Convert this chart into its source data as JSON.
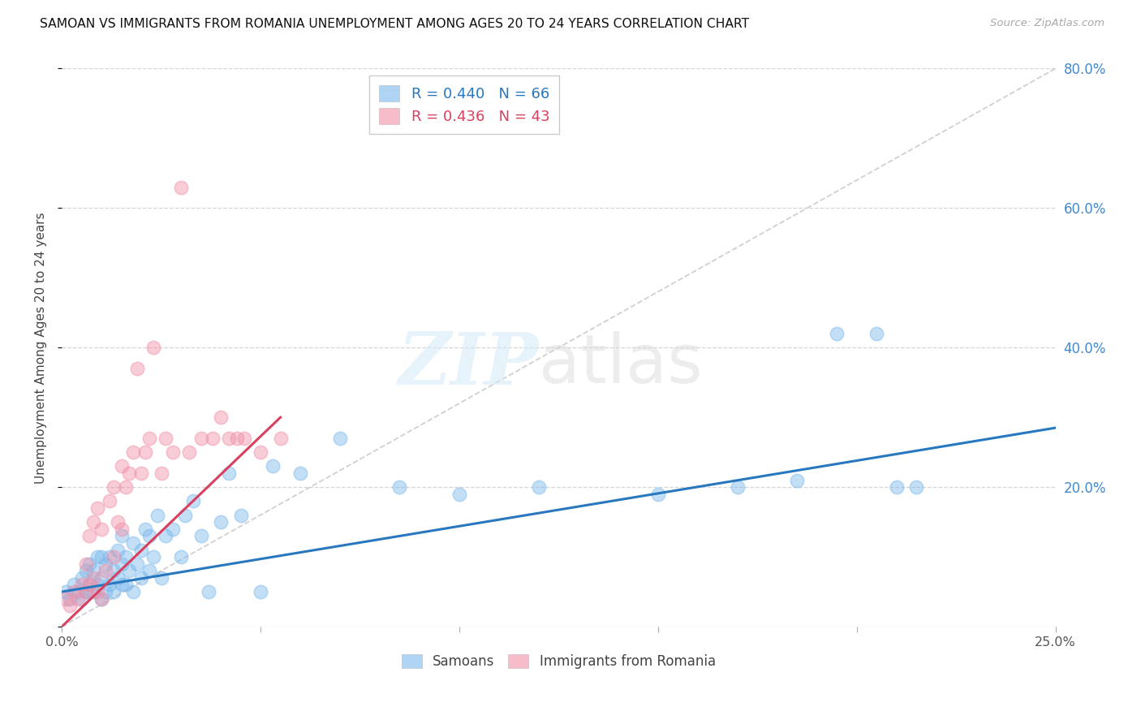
{
  "title": "SAMOAN VS IMMIGRANTS FROM ROMANIA UNEMPLOYMENT AMONG AGES 20 TO 24 YEARS CORRELATION CHART",
  "source": "Source: ZipAtlas.com",
  "ylabel": "Unemployment Among Ages 20 to 24 years",
  "xlim": [
    0.0,
    0.25
  ],
  "ylim": [
    0.0,
    0.8
  ],
  "x_ticks": [
    0.0,
    0.05,
    0.1,
    0.15,
    0.2,
    0.25
  ],
  "x_tick_labels": [
    "0.0%",
    "",
    "",
    "",
    "",
    "25.0%"
  ],
  "y_ticks": [
    0.0,
    0.2,
    0.4,
    0.6,
    0.8
  ],
  "y_tick_labels_right": [
    "",
    "20.0%",
    "40.0%",
    "60.0%",
    "80.0%"
  ],
  "samoan_R": 0.44,
  "samoan_N": 66,
  "romania_R": 0.436,
  "romania_N": 43,
  "samoan_color": "#7ab8ec",
  "romania_color": "#f090a8",
  "samoan_line_color": "#2878c0",
  "romania_line_color": "#d84060",
  "diagonal_color": "#c8c8c8",
  "legend_samoan": "Samoans",
  "legend_romania": "Immigrants from Romania",
  "samoan_x": [
    0.001,
    0.002,
    0.003,
    0.004,
    0.005,
    0.005,
    0.006,
    0.006,
    0.007,
    0.007,
    0.008,
    0.008,
    0.009,
    0.009,
    0.01,
    0.01,
    0.01,
    0.011,
    0.011,
    0.012,
    0.012,
    0.013,
    0.013,
    0.014,
    0.014,
    0.015,
    0.015,
    0.015,
    0.016,
    0.016,
    0.017,
    0.018,
    0.018,
    0.019,
    0.02,
    0.02,
    0.021,
    0.022,
    0.022,
    0.023,
    0.024,
    0.025,
    0.026,
    0.028,
    0.03,
    0.031,
    0.033,
    0.035,
    0.037,
    0.04,
    0.042,
    0.045,
    0.05,
    0.053,
    0.06,
    0.07,
    0.085,
    0.1,
    0.12,
    0.15,
    0.17,
    0.185,
    0.195,
    0.205,
    0.21,
    0.215
  ],
  "samoan_y": [
    0.05,
    0.04,
    0.06,
    0.05,
    0.04,
    0.07,
    0.05,
    0.08,
    0.06,
    0.09,
    0.05,
    0.08,
    0.06,
    0.1,
    0.04,
    0.07,
    0.1,
    0.05,
    0.09,
    0.06,
    0.1,
    0.05,
    0.08,
    0.07,
    0.11,
    0.06,
    0.09,
    0.13,
    0.06,
    0.1,
    0.08,
    0.05,
    0.12,
    0.09,
    0.07,
    0.11,
    0.14,
    0.08,
    0.13,
    0.1,
    0.16,
    0.07,
    0.13,
    0.14,
    0.1,
    0.16,
    0.18,
    0.13,
    0.05,
    0.15,
    0.22,
    0.16,
    0.05,
    0.23,
    0.22,
    0.27,
    0.2,
    0.19,
    0.2,
    0.19,
    0.2,
    0.21,
    0.42,
    0.42,
    0.2,
    0.2
  ],
  "romania_x": [
    0.001,
    0.002,
    0.003,
    0.004,
    0.005,
    0.006,
    0.006,
    0.007,
    0.007,
    0.008,
    0.008,
    0.009,
    0.009,
    0.01,
    0.01,
    0.011,
    0.012,
    0.013,
    0.013,
    0.014,
    0.015,
    0.015,
    0.016,
    0.017,
    0.018,
    0.019,
    0.02,
    0.021,
    0.022,
    0.023,
    0.025,
    0.026,
    0.028,
    0.03,
    0.032,
    0.035,
    0.038,
    0.04,
    0.042,
    0.044,
    0.046,
    0.05,
    0.055
  ],
  "romania_y": [
    0.04,
    0.03,
    0.05,
    0.04,
    0.06,
    0.05,
    0.09,
    0.06,
    0.13,
    0.07,
    0.15,
    0.05,
    0.17,
    0.04,
    0.14,
    0.08,
    0.18,
    0.1,
    0.2,
    0.15,
    0.14,
    0.23,
    0.2,
    0.22,
    0.25,
    0.37,
    0.22,
    0.25,
    0.27,
    0.4,
    0.22,
    0.27,
    0.25,
    0.63,
    0.25,
    0.27,
    0.27,
    0.3,
    0.27,
    0.27,
    0.27,
    0.25,
    0.27
  ]
}
